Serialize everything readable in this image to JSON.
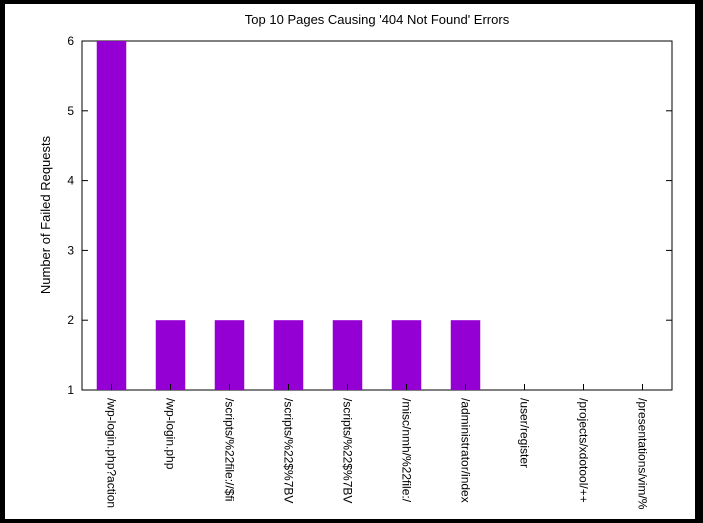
{
  "chart_data": {
    "type": "bar",
    "title": "Top 10 Pages Causing '404 Not Found' Errors",
    "xlabel": "",
    "ylabel": "Number of Failed Requests",
    "ylim": [
      1,
      6
    ],
    "yticks": [
      1,
      2,
      3,
      4,
      5,
      6
    ],
    "grid": false,
    "legend": false,
    "bar_color": "#9400d3",
    "categories": [
      "/wp-login.php?action",
      "/wp-login.php",
      "/scripts/%22file://$fi",
      "/scripts/%22$%7BV",
      "/scripts/%22$%7BV",
      "/misc/nmh/%22file:/",
      "/administrator/index",
      "/user/register",
      "/projects/xdotool/++",
      "/presentations/vim/%"
    ],
    "values": [
      6,
      2,
      2,
      2,
      2,
      2,
      2,
      1,
      1,
      1
    ]
  }
}
